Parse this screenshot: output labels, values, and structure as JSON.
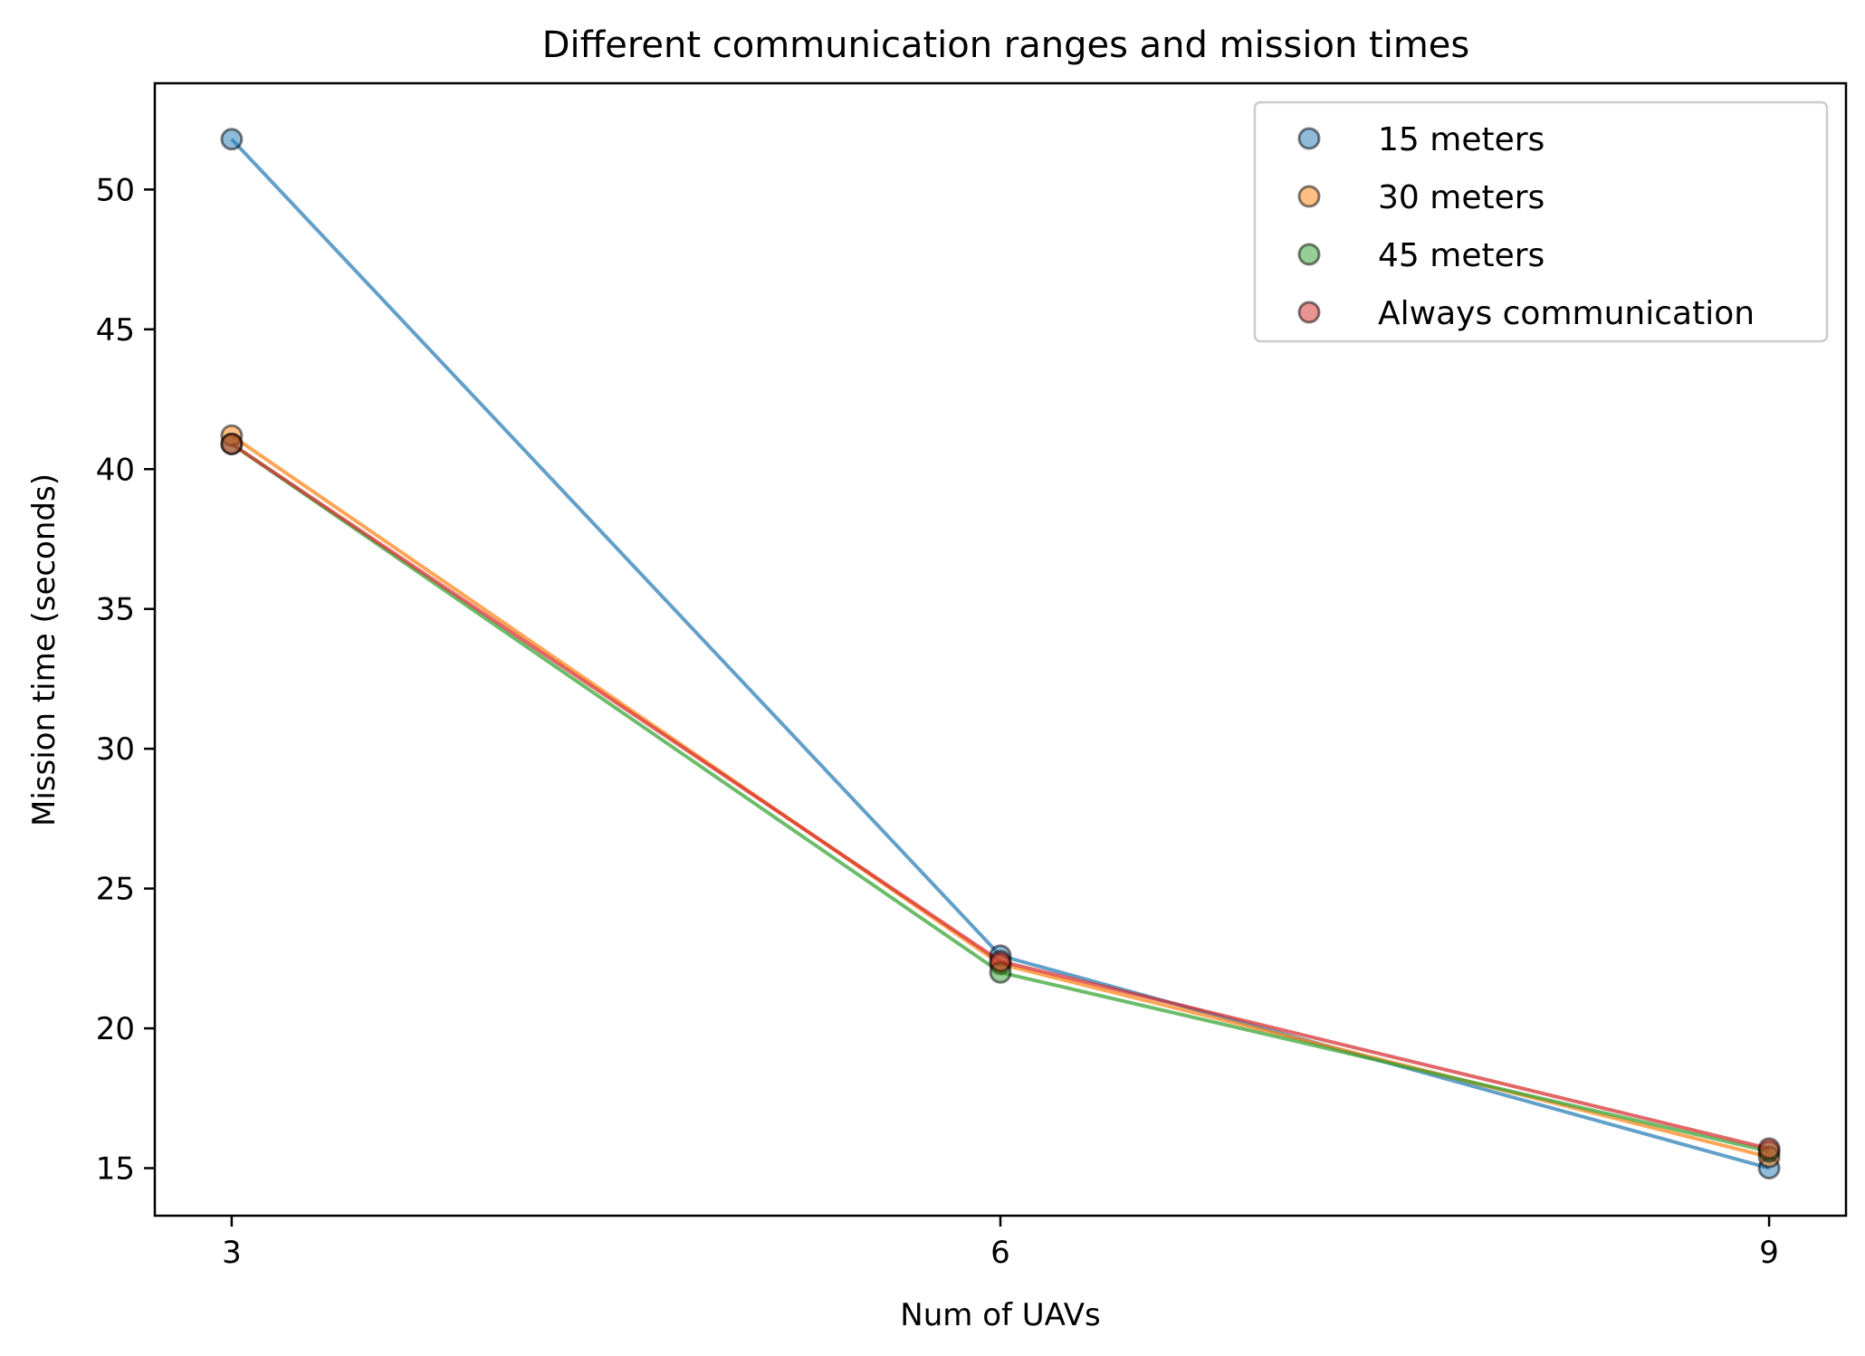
{
  "chart_data": {
    "type": "line",
    "title": "Different communication ranges and mission times",
    "xlabel": "Num of UAVs",
    "ylabel": "Mission time (seconds)",
    "x": [
      3,
      6,
      9
    ],
    "x_ticks": [
      "3",
      "6",
      "9"
    ],
    "y_ticks": [
      "15",
      "20",
      "25",
      "30",
      "35",
      "40",
      "45",
      "50"
    ],
    "xlim": [
      2.7,
      9.3
    ],
    "ylim": [
      13.3,
      53.8
    ],
    "grid": false,
    "legend_position": "top-right",
    "series": [
      {
        "name": "15 meters",
        "color": "#1f77b4",
        "values": [
          51.8,
          22.6,
          15.0
        ]
      },
      {
        "name": "30 meters",
        "color": "#ff7f0e",
        "values": [
          41.2,
          22.3,
          15.4
        ]
      },
      {
        "name": "45 meters",
        "color": "#2ca02c",
        "values": [
          40.9,
          22.0,
          15.6
        ]
      },
      {
        "name": "Always communication",
        "color": "#d62728",
        "values": [
          40.9,
          22.4,
          15.7
        ]
      }
    ]
  }
}
